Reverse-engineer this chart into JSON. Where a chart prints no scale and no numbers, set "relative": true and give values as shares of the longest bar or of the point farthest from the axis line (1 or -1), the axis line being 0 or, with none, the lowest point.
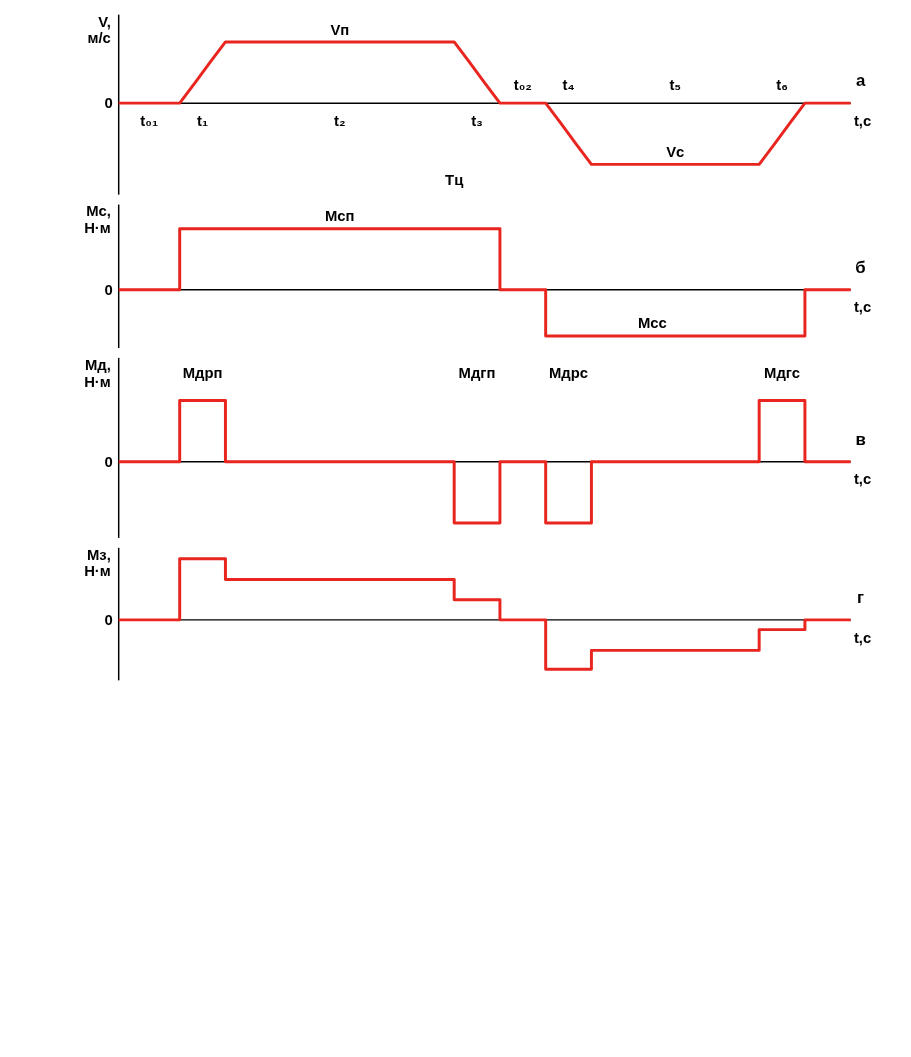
{
  "chart_data": [
    {
      "type": "line",
      "relative": true,
      "ylabel": "V, м/с",
      "xlabel": "t,c",
      "categories": [
        null,
        null,
        null,
        null,
        null,
        null,
        null,
        null,
        null,
        null,
        null,
        null,
        null,
        null,
        null,
        null,
        null,
        null,
        null,
        null,
        null,
        null,
        null,
        null,
        null,
        null,
        null,
        null,
        null,
        null,
        null,
        null,
        null,
        null,
        null,
        null,
        null,
        null,
        null,
        null,
        null,
        null,
        null,
        null,
        null,
        null,
        null,
        null,
        null
      ],
      "series": [
        {
          "color": "#e8251f",
          "values": [
            0,
            0,
            0,
            0,
            0,
            0.33,
            0.67,
            1,
            1,
            1,
            1,
            1,
            1,
            1,
            1,
            1,
            1,
            1,
            1,
            1,
            1,
            1,
            1,
            0.67,
            0.33,
            0,
            0,
            0,
            0,
            -0.33,
            -0.67,
            -1,
            -1,
            -1,
            -1,
            -1,
            -1,
            -1,
            -1,
            -1,
            -1,
            -1,
            -1,
            -0.67,
            -0.33,
            0,
            0,
            0,
            0
          ]
        }
      ],
      "annotations": [
        "0",
        "а",
        "Vп",
        "Vс",
        "t₀₂",
        "t₄",
        "t₅",
        "t₆",
        "t₀₁",
        "t₁",
        "t₂",
        "t₃",
        "Tц"
      ]
    },
    {
      "type": "step",
      "relative": true,
      "ylabel": "Мс, Н·м",
      "xlabel": "t,c",
      "categories": [
        null,
        null,
        null,
        null,
        null,
        null,
        null,
        null,
        null,
        null,
        null,
        null,
        null,
        null,
        null,
        null,
        null,
        null,
        null,
        null,
        null,
        null,
        null,
        null,
        null,
        null,
        null,
        null,
        null,
        null,
        null,
        null,
        null,
        null,
        null,
        null,
        null,
        null,
        null,
        null,
        null,
        null,
        null,
        null,
        null,
        null,
        null,
        null,
        null
      ],
      "series": [
        {
          "color": "#e8251f",
          "values": [
            0,
            0,
            0,
            0,
            1,
            1,
            1,
            1,
            1,
            1,
            1,
            1,
            1,
            1,
            1,
            1,
            1,
            1,
            1,
            1,
            1,
            1,
            1,
            1,
            1,
            0,
            0,
            0,
            -0.76,
            -0.76,
            -0.76,
            -0.76,
            -0.76,
            -0.76,
            -0.76,
            -0.76,
            -0.76,
            -0.76,
            -0.76,
            -0.76,
            -0.76,
            -0.76,
            -0.76,
            -0.76,
            -0.76,
            0,
            0,
            0,
            0
          ]
        }
      ],
      "annotations": [
        "0",
        "б",
        "Мсп",
        "Мсс"
      ]
    },
    {
      "type": "step",
      "relative": true,
      "ylabel": "Мд, Н·м",
      "xlabel": "t,c",
      "categories": [
        null,
        null,
        null,
        null,
        null,
        null,
        null,
        null,
        null,
        null,
        null,
        null,
        null,
        null,
        null,
        null,
        null,
        null,
        null,
        null,
        null,
        null,
        null,
        null,
        null,
        null,
        null,
        null,
        null,
        null,
        null,
        null,
        null,
        null,
        null,
        null,
        null,
        null,
        null,
        null,
        null,
        null,
        null,
        null,
        null,
        null,
        null,
        null,
        null
      ],
      "series": [
        {
          "color": "#e8251f",
          "values": [
            0,
            0,
            0,
            0,
            1,
            1,
            1,
            0,
            0,
            0,
            0,
            0,
            0,
            0,
            0,
            0,
            0,
            0,
            0,
            0,
            0,
            0,
            -1,
            -1,
            -1,
            0,
            0,
            0,
            -1,
            -1,
            -1,
            0,
            0,
            0,
            0,
            0,
            0,
            0,
            0,
            0,
            0,
            0,
            1,
            1,
            1,
            0,
            0,
            0,
            0
          ]
        }
      ],
      "annotations": [
        "0",
        "в",
        "Мдрп",
        "Мдгп",
        "Мдрс",
        "Мдгс"
      ]
    },
    {
      "type": "step",
      "relative": true,
      "ylabel": "Мз, Н·м",
      "xlabel": "t,c",
      "categories": [
        null,
        null,
        null,
        null,
        null,
        null,
        null,
        null,
        null,
        null,
        null,
        null,
        null,
        null,
        null,
        null,
        null,
        null,
        null,
        null,
        null,
        null,
        null,
        null,
        null,
        null,
        null,
        null,
        null,
        null,
        null,
        null,
        null,
        null,
        null,
        null,
        null,
        null,
        null,
        null,
        null,
        null,
        null,
        null,
        null,
        null,
        null,
        null,
        null
      ],
      "series": [
        {
          "color": "#e8251f",
          "values": [
            0,
            0,
            0,
            0,
            1,
            1,
            1,
            0.66,
            0.66,
            0.66,
            0.66,
            0.66,
            0.66,
            0.66,
            0.66,
            0.66,
            0.66,
            0.66,
            0.66,
            0.66,
            0.66,
            0.66,
            0.33,
            0.33,
            0.33,
            0,
            0,
            0,
            -0.81,
            -0.81,
            -0.81,
            -0.5,
            -0.5,
            -0.5,
            -0.5,
            -0.5,
            -0.5,
            -0.5,
            -0.5,
            -0.5,
            -0.5,
            -0.5,
            -0.16,
            -0.16,
            -0.16,
            0,
            0,
            0,
            0
          ]
        }
      ],
      "annotations": [
        "0",
        "г"
      ]
    }
  ]
}
